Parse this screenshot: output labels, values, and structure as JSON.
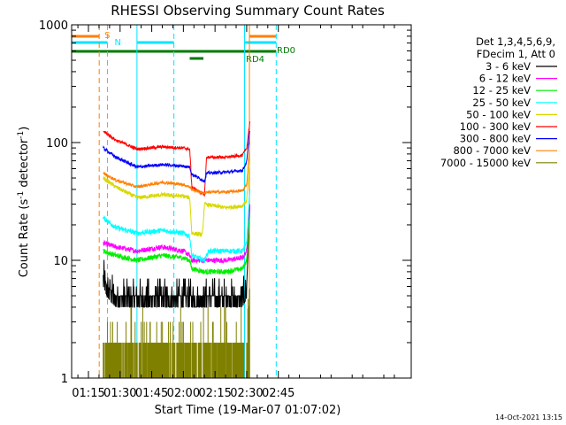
{
  "chart_data": {
    "type": "line",
    "title": "RHESSI Observing Summary Count Rates",
    "xlabel": "Start Time (19-Mar-07 01:07:02)",
    "ylabel": "Count Rate (s",
    "ylabel_sup": "-1",
    "ylabel_tail": " detector",
    "ylabel_tail_sup": "-1",
    "ylabel_close": ")",
    "yscale": "log",
    "ylim": [
      1,
      1000
    ],
    "xlim_minutes": [
      7.03,
      168.0
    ],
    "x_ticks": [
      {
        "label": "01:15",
        "minutes": 15
      },
      {
        "label": "01:30",
        "minutes": 30
      },
      {
        "label": "01:45",
        "minutes": 45
      },
      {
        "label": "02:00",
        "minutes": 60
      },
      {
        "label": "02:15",
        "minutes": 75
      },
      {
        "label": "02:30",
        "minutes": 90
      },
      {
        "label": "02:45",
        "minutes": 105
      }
    ],
    "y_ticks": [
      {
        "label": "1",
        "value": 1
      },
      {
        "label": "10",
        "value": 10
      },
      {
        "label": "100",
        "value": 100
      },
      {
        "label": "1000",
        "value": 1000
      }
    ],
    "legend_header": [
      "Det 1,3,4,5,6,9,",
      "FDecim 1, Att 0"
    ],
    "timestamp": "14-Oct-2021 13:15",
    "flag_bars": [
      {
        "label": "S",
        "color": "#ff8000",
        "row": 1,
        "segments": [
          [
            7.03,
            20.1
          ],
          [
            91.3,
            104
          ]
        ]
      },
      {
        "label": "N",
        "color": "#00e5ff",
        "row": 2,
        "segments": [
          [
            7.03,
            24.0
          ],
          [
            38.0,
            55.5
          ],
          [
            89.0,
            104
          ]
        ]
      },
      {
        "label": "RD0",
        "color": "#007a00",
        "row": 3,
        "segments": [
          [
            7.03,
            104
          ]
        ]
      },
      {
        "label": "RD4",
        "color": "#007a00",
        "row": 4,
        "segments": [
          [
            63.0,
            69.5
          ]
        ]
      }
    ],
    "vertical_markers": [
      {
        "minutes": 20.1,
        "color": "#ff8000",
        "style": "dashed"
      },
      {
        "minutes": 24.0,
        "color": "#00e5ff",
        "style": "dashed"
      },
      {
        "minutes": 38.0,
        "color": "#00e5ff",
        "style": "solid"
      },
      {
        "minutes": 55.5,
        "color": "#00e5ff",
        "style": "dashed"
      },
      {
        "minutes": 89.0,
        "color": "#00e5ff",
        "style": "solid"
      },
      {
        "minutes": 91.3,
        "color": "#ff8000",
        "style": "solid"
      },
      {
        "minutes": 104.0,
        "color": "#00e5ff",
        "style": "dashed"
      }
    ],
    "series": [
      {
        "name": "3 - 6 keV",
        "color": "#000000",
        "noise": 0.5,
        "quantized": true,
        "points": [
          [
            22,
            7.5
          ],
          [
            24,
            6.0
          ],
          [
            28,
            5.0
          ],
          [
            45,
            5.0
          ],
          [
            60,
            5.0
          ],
          [
            66,
            5.0
          ],
          [
            72,
            5.0
          ],
          [
            88,
            5.0
          ],
          [
            90,
            6.0
          ],
          [
            91.5,
            30
          ]
        ]
      },
      {
        "name": "6 - 12 keV",
        "color": "#ff00ff",
        "noise": 0.05,
        "points": [
          [
            22,
            14
          ],
          [
            28,
            13
          ],
          [
            38,
            12
          ],
          [
            50,
            13
          ],
          [
            60,
            12
          ],
          [
            63,
            11
          ],
          [
            64,
            10
          ],
          [
            70,
            10
          ],
          [
            80,
            10
          ],
          [
            88,
            10.5
          ],
          [
            90,
            12
          ],
          [
            91.5,
            30
          ]
        ]
      },
      {
        "name": "12 - 25 keV",
        "color": "#00ee00",
        "noise": 0.05,
        "points": [
          [
            22,
            12
          ],
          [
            28,
            11
          ],
          [
            38,
            10
          ],
          [
            50,
            11
          ],
          [
            60,
            10.5
          ],
          [
            63,
            10
          ],
          [
            64,
            8.5
          ],
          [
            70,
            8
          ],
          [
            80,
            8
          ],
          [
            88,
            8.5
          ],
          [
            90,
            10
          ],
          [
            91.5,
            25
          ]
        ]
      },
      {
        "name": "25 - 50 keV",
        "color": "#00ffff",
        "noise": 0.05,
        "points": [
          [
            22,
            23
          ],
          [
            28,
            19
          ],
          [
            38,
            17
          ],
          [
            50,
            18
          ],
          [
            60,
            17
          ],
          [
            63,
            16
          ],
          [
            64,
            11
          ],
          [
            70,
            10
          ],
          [
            72,
            12
          ],
          [
            80,
            12
          ],
          [
            88,
            12
          ],
          [
            90,
            14
          ],
          [
            91.5,
            40
          ]
        ]
      },
      {
        "name": "50 - 100 keV",
        "color": "#d8d800",
        "noise": 0.04,
        "points": [
          [
            22,
            50
          ],
          [
            28,
            42
          ],
          [
            38,
            34
          ],
          [
            50,
            36
          ],
          [
            60,
            35
          ],
          [
            63,
            34
          ],
          [
            64,
            17
          ],
          [
            69,
            16.5
          ],
          [
            70,
            30
          ],
          [
            80,
            28
          ],
          [
            88,
            29
          ],
          [
            90,
            32
          ],
          [
            91.5,
            70
          ]
        ]
      },
      {
        "name": "100 - 300 keV",
        "color": "#ff0000",
        "noise": 0.03,
        "points": [
          [
            22,
            125
          ],
          [
            28,
            105
          ],
          [
            38,
            88
          ],
          [
            50,
            92
          ],
          [
            60,
            90
          ],
          [
            63,
            88
          ],
          [
            64,
            42
          ],
          [
            70,
            36
          ],
          [
            71,
            75
          ],
          [
            80,
            75
          ],
          [
            88,
            78
          ],
          [
            90,
            90
          ],
          [
            91.5,
            150
          ]
        ]
      },
      {
        "name": "300 - 800 keV",
        "color": "#0000ff",
        "noise": 0.03,
        "points": [
          [
            22,
            90
          ],
          [
            28,
            75
          ],
          [
            38,
            62
          ],
          [
            50,
            65
          ],
          [
            60,
            63
          ],
          [
            63,
            62
          ],
          [
            64,
            54
          ],
          [
            70,
            47
          ],
          [
            71,
            55
          ],
          [
            80,
            56
          ],
          [
            88,
            58
          ],
          [
            90,
            68
          ],
          [
            91.5,
            130
          ]
        ]
      },
      {
        "name": "800 - 7000 keV",
        "color": "#ff8000",
        "noise": 0.03,
        "points": [
          [
            22,
            55
          ],
          [
            28,
            48
          ],
          [
            38,
            42
          ],
          [
            50,
            46
          ],
          [
            60,
            44
          ],
          [
            63,
            42
          ],
          [
            64,
            40
          ],
          [
            70,
            37
          ],
          [
            71,
            38
          ],
          [
            80,
            38
          ],
          [
            88,
            39
          ],
          [
            90,
            44
          ],
          [
            91.5,
            100
          ]
        ]
      },
      {
        "name": "7000 - 15000 keV",
        "color": "#808000",
        "noise": 0.0,
        "bursty": true,
        "points": [
          [
            22,
            2
          ],
          [
            60,
            2
          ],
          [
            88,
            2
          ],
          [
            91.5,
            5
          ]
        ]
      }
    ]
  }
}
